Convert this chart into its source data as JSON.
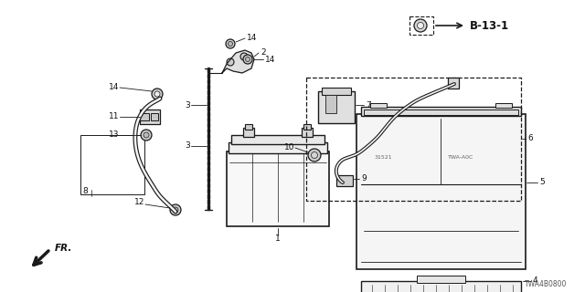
{
  "bg_color": "#ffffff",
  "fig_width": 6.4,
  "fig_height": 3.2,
  "dpi": 100,
  "line_color": "#1a1a1a",
  "text_color": "#111111",
  "font_size_label": 6.5,
  "font_size_ref": 7.5,
  "font_size_code": 5.5,
  "diagram_code": "TWA4B0800",
  "ref_label": "B-13-1"
}
